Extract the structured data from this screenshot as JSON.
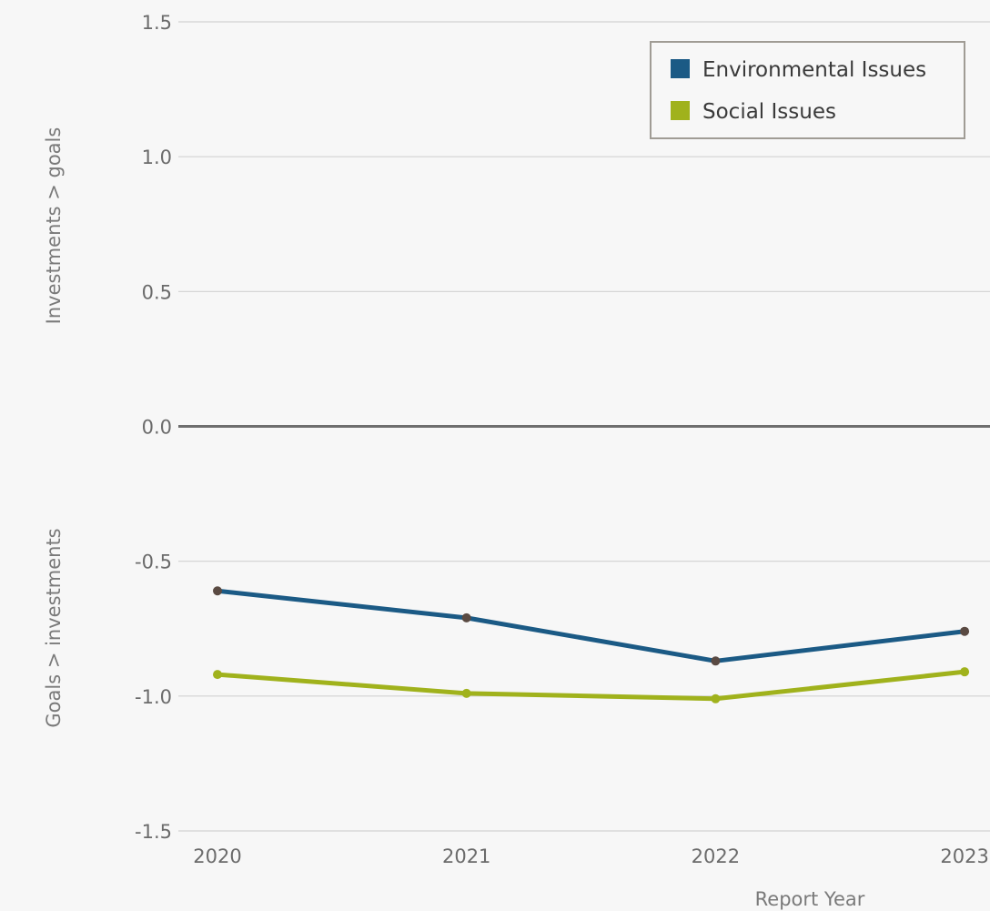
{
  "chart_data": {
    "type": "line",
    "categories": [
      "2020",
      "2021",
      "2022",
      "2023"
    ],
    "series": [
      {
        "name": "Environmental Issues",
        "values": [
          -0.61,
          -0.71,
          -0.87,
          -0.76
        ],
        "color": "#1b5a85"
      },
      {
        "name": "Social Issues",
        "values": [
          -0.92,
          -0.99,
          -1.01,
          -0.91
        ],
        "color": "#a0b21c"
      }
    ],
    "xlabel": "Report Year",
    "ylabel_upper": "Investments > goals",
    "ylabel_lower": "Goals > investments",
    "ylim": [
      -1.5,
      1.5
    ],
    "yticks": [
      1.5,
      1.0,
      0.5,
      0.0,
      -0.5,
      -1.0,
      -1.5
    ],
    "ytick_labels": [
      "1.5",
      "1.0",
      "0.5",
      "0.0",
      "-0.5",
      "-1.0",
      "-1.5"
    ],
    "grid": true,
    "legend_position": "top-right",
    "marker_color": "#5a4a42"
  }
}
